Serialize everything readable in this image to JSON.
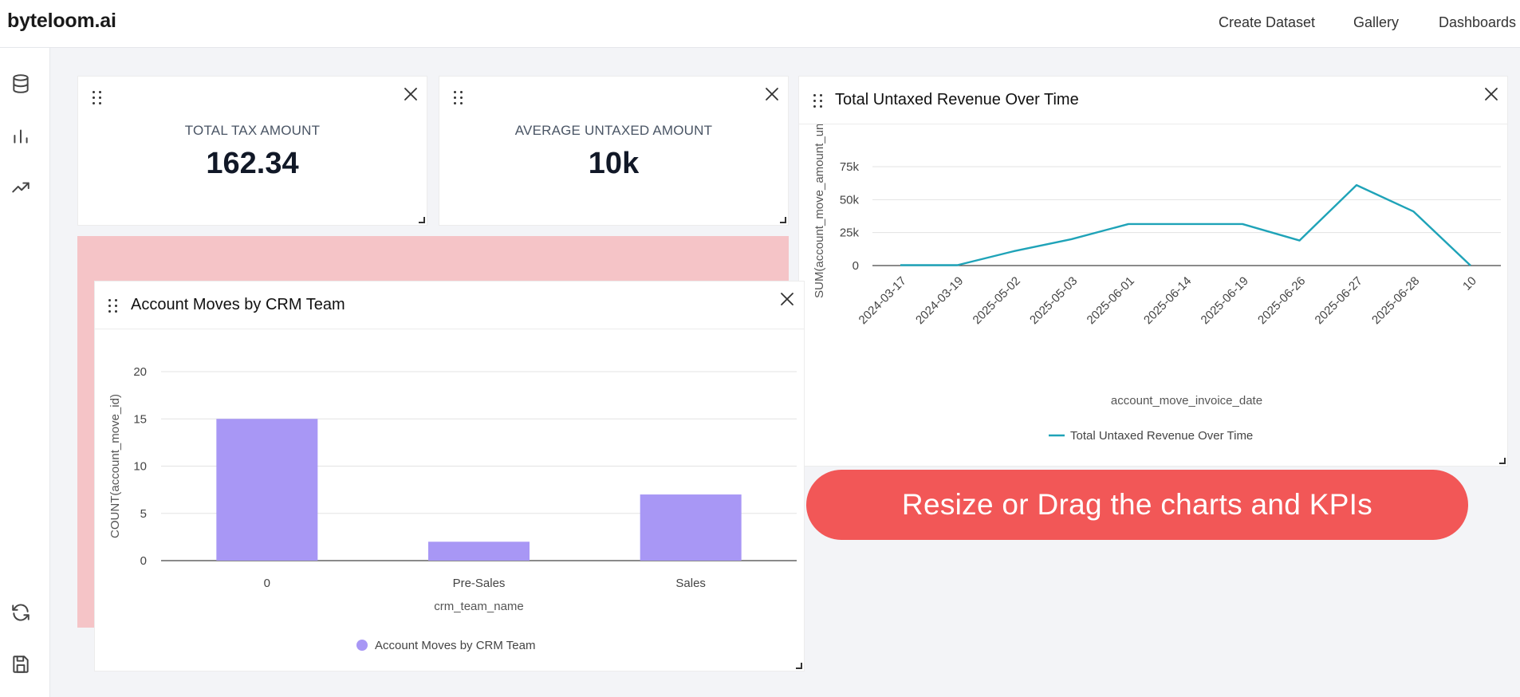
{
  "brand": "byteloom.ai",
  "nav": {
    "create_dataset": "Create Dataset",
    "gallery": "Gallery",
    "dashboards": "Dashboards"
  },
  "sidebar_icons": [
    "database-icon",
    "bar-chart-icon",
    "trending-up-icon",
    "refresh-icon",
    "save-icon"
  ],
  "kpis": [
    {
      "label": "TOTAL TAX AMOUNT",
      "value": "162.34"
    },
    {
      "label": "AVERAGE UNTAXED AMOUNT",
      "value": "10k"
    }
  ],
  "cta": "Resize or Drag the charts and KPIs",
  "colors": {
    "bar": "#a897f5",
    "line": "#1fa3b8",
    "cta": "#f25757",
    "drop_zone": "#f5c4c7"
  },
  "chart_data": [
    {
      "type": "bar",
      "title": "Account Moves by CRM Team",
      "xlabel": "crm_team_name",
      "ylabel": "COUNT(account_move_id)",
      "categories": [
        "0",
        "Pre-Sales",
        "Sales"
      ],
      "series": [
        {
          "name": "Account Moves by CRM Team",
          "values": [
            15,
            2,
            7
          ]
        }
      ],
      "ylim": [
        0,
        20
      ],
      "yticks": [
        0,
        5,
        10,
        15,
        20
      ],
      "grid": true,
      "legend": "bottom"
    },
    {
      "type": "line",
      "title": "Total Untaxed Revenue Over Time",
      "xlabel": "account_move_invoice_date",
      "ylabel": "SUM(account_move_amount_unta",
      "categories": [
        "2024-03-17",
        "2024-03-19",
        "2025-05-02",
        "2025-05-03",
        "2025-06-01",
        "2025-06-14",
        "2025-06-19",
        "2025-06-26",
        "2025-06-27",
        "2025-06-28",
        "10"
      ],
      "series": [
        {
          "name": "Total Untaxed Revenue Over Time",
          "values": [
            300,
            300,
            11000,
            20000,
            31500,
            31500,
            31500,
            19000,
            61000,
            41000,
            0
          ]
        }
      ],
      "ylim": [
        0,
        75000
      ],
      "yticks": [
        0,
        25000,
        50000,
        75000
      ],
      "ytick_labels": [
        "0",
        "25k",
        "50k",
        "75k"
      ],
      "grid": true,
      "legend": "bottom"
    }
  ]
}
